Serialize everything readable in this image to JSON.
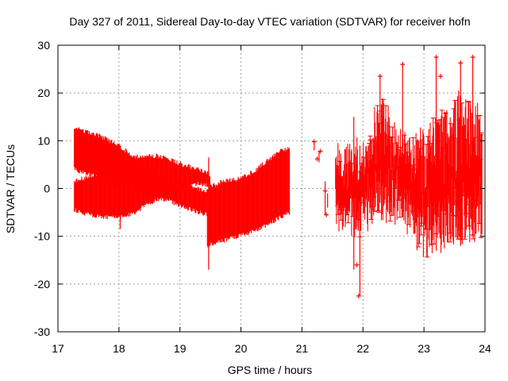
{
  "chart_data": {
    "type": "errorbar-scatter",
    "title": "Day 327 of 2011, Sidereal Day-to-day VTEC variation (SDTVAR) for receiver hofn",
    "xlabel": "GPS time / hours",
    "ylabel": "SDTVAR / TECUs",
    "xlim": [
      17,
      24
    ],
    "ylim": [
      -30,
      30
    ],
    "xticks": [
      "17",
      "18",
      "19",
      "20",
      "21",
      "22",
      "23",
      "24"
    ],
    "yticks": [
      "-30",
      "-20",
      "-10",
      "0",
      "10",
      "20",
      "30"
    ],
    "grid": true,
    "series_color": "#ff0000",
    "series": [
      {
        "name": "sdtvar",
        "bands": [
          {
            "x": [
              17.27,
              17.45,
              17.7,
              18.0,
              18.3,
              18.55,
              18.8,
              19.0,
              19.2,
              19.45
            ],
            "upper": [
              13,
              12,
              11,
              9,
              6,
              4,
              2.5,
              1.2,
              0.3,
              -0.5
            ],
            "lower": [
              5,
              4.5,
              3.5,
              1.5,
              -1,
              -2,
              -2.5,
              -3.5,
              -4.5,
              -5.5
            ]
          },
          {
            "x": [
              17.27,
              17.5,
              17.8,
              18.05,
              18.25,
              18.45,
              18.65,
              18.85,
              19.05,
              19.3,
              19.5
            ],
            "upper": [
              1.5,
              2.5,
              4,
              5.5,
              6.5,
              7,
              6.8,
              6,
              5,
              4,
              3
            ],
            "lower": [
              -4.5,
              -5.5,
              -6,
              -6,
              -5,
              -3.5,
              -2,
              -1,
              0,
              1,
              0.5
            ]
          },
          {
            "x": [
              17.27,
              17.5,
              17.8,
              18.0
            ],
            "upper": [
              11,
              10,
              9,
              8
            ],
            "lower": [
              4,
              3,
              2,
              0
            ]
          },
          {
            "x": [
              19.45,
              19.7,
              19.95,
              20.2,
              20.45,
              20.65,
              20.8
            ],
            "upper": [
              0,
              1.5,
              2,
              3.5,
              6,
              8,
              8.5
            ],
            "lower": [
              -12,
              -11,
              -10,
              -9,
              -7.5,
              -6,
              -5
            ]
          }
        ],
        "noisy": {
          "x_range": [
            21.55,
            23.95
          ],
          "envelope": [
            {
              "x": 21.55,
              "upper": 7,
              "lower": -7
            },
            {
              "x": 22.0,
              "upper": 8,
              "lower": -8
            },
            {
              "x": 22.3,
              "upper": 18,
              "lower": -4
            },
            {
              "x": 22.6,
              "upper": 10,
              "lower": -5
            },
            {
              "x": 23.0,
              "upper": 10,
              "lower": -12
            },
            {
              "x": 23.5,
              "upper": 18,
              "lower": -10
            },
            {
              "x": 23.95,
              "upper": 15,
              "lower": -9
            }
          ],
          "outliers": [
            {
              "x": 21.2,
              "y": 9.8
            },
            {
              "x": 21.25,
              "y": 6.2
            },
            {
              "x": 21.3,
              "y": 7.8
            },
            {
              "x": 21.38,
              "y": -0.5
            },
            {
              "x": 21.4,
              "y": -5.5
            },
            {
              "x": 21.9,
              "y": -16
            },
            {
              "x": 21.93,
              "y": -22.5
            },
            {
              "x": 22.28,
              "y": 23.5
            },
            {
              "x": 22.65,
              "y": 26
            },
            {
              "x": 23.2,
              "y": 27.5
            },
            {
              "x": 23.6,
              "y": 26.3
            },
            {
              "x": 23.8,
              "y": 27.5
            },
            {
              "x": 23.27,
              "y": 23.5
            }
          ],
          "spikes": [
            {
              "x": 19.47,
              "y1": -17,
              "y2": 6.5
            },
            {
              "x": 18.02,
              "y1": -8.5,
              "y2": 4
            },
            {
              "x": 21.85,
              "y1": -17,
              "y2": 15
            },
            {
              "x": 21.95,
              "y1": -22.5,
              "y2": 9
            },
            {
              "x": 22.28,
              "y1": -3,
              "y2": 23.5
            },
            {
              "x": 22.65,
              "y1": -6,
              "y2": 26
            },
            {
              "x": 23.2,
              "y1": -13,
              "y2": 27.5
            },
            {
              "x": 23.6,
              "y1": -12,
              "y2": 26.3
            },
            {
              "x": 23.8,
              "y1": -10,
              "y2": 27.5
            }
          ]
        }
      }
    ]
  }
}
